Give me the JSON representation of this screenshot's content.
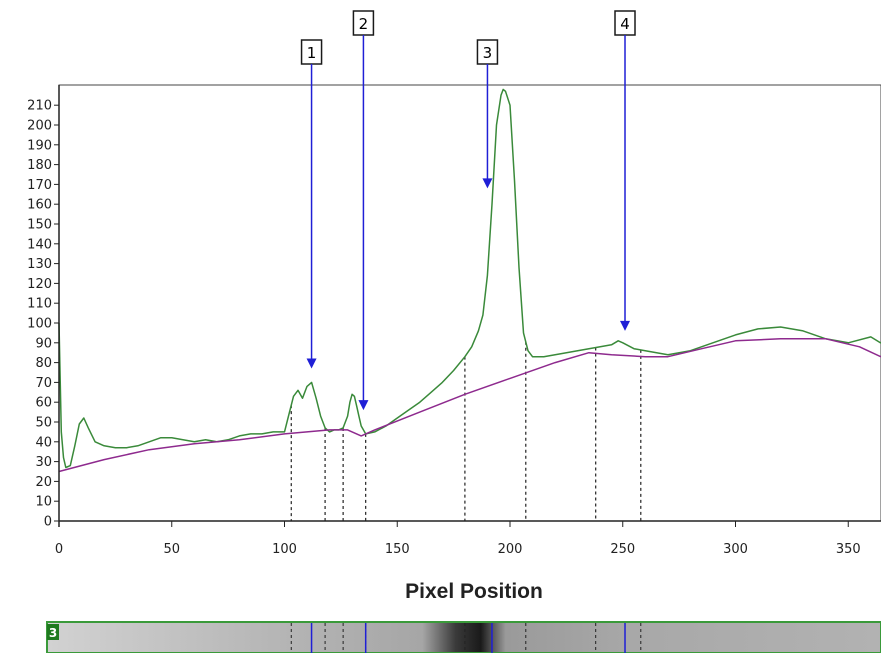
{
  "chart_data": {
    "type": "line",
    "xlabel": "Pixel Position",
    "ylabel": "",
    "xlim": [
      0,
      370
    ],
    "ylim": [
      0,
      220
    ],
    "x_ticks": [
      0,
      50,
      100,
      150,
      200,
      250,
      300,
      350
    ],
    "y_ticks": [
      0,
      10,
      20,
      30,
      40,
      50,
      60,
      70,
      80,
      90,
      100,
      110,
      120,
      130,
      140,
      150,
      160,
      170,
      180,
      190,
      200,
      210
    ],
    "grid": false,
    "colors": {
      "profile": "#3a8a3a",
      "baseline": "#8e2a8e",
      "marker": "#1f1fd6",
      "lane_label_bg": "#1f7a1f",
      "lane_border": "#3a9a3a"
    },
    "series": [
      {
        "role": "profile",
        "x": [
          0,
          1,
          2,
          3,
          5,
          7,
          9,
          11,
          13,
          16,
          20,
          25,
          30,
          35,
          40,
          45,
          50,
          55,
          60,
          65,
          70,
          75,
          80,
          85,
          90,
          95,
          100,
          102,
          104,
          106,
          108,
          110,
          112,
          114,
          116,
          118,
          120,
          122,
          124,
          126,
          128,
          129,
          130,
          131,
          132,
          133,
          134,
          136,
          140,
          145,
          150,
          155,
          160,
          165,
          170,
          175,
          180,
          183,
          186,
          188,
          190,
          192,
          194,
          196,
          197,
          198,
          200,
          202,
          204,
          206,
          208,
          210,
          215,
          220,
          225,
          230,
          235,
          240,
          245,
          248,
          250,
          255,
          260,
          265,
          270,
          280,
          290,
          300,
          310,
          320,
          330,
          340,
          350,
          360,
          370
        ],
        "y": [
          100,
          45,
          32,
          27,
          28,
          38,
          49,
          52,
          47,
          40,
          38,
          37,
          37,
          38,
          40,
          42,
          42,
          41,
          40,
          41,
          40,
          41,
          43,
          44,
          44,
          45,
          45,
          54,
          63,
          66,
          62,
          68,
          70,
          62,
          53,
          47,
          45,
          46,
          46,
          47,
          53,
          60,
          64,
          63,
          58,
          53,
          48,
          44,
          45,
          48,
          52,
          56,
          60,
          65,
          70,
          76,
          83,
          88,
          96,
          104,
          124,
          160,
          200,
          215,
          218,
          217,
          210,
          172,
          128,
          95,
          86,
          83,
          83,
          84,
          85,
          86,
          87,
          88,
          89,
          91,
          90,
          87,
          86,
          85,
          84,
          86,
          90,
          94,
          97,
          98,
          96,
          92,
          90,
          93,
          86
        ]
      },
      {
        "role": "baseline",
        "x": [
          0,
          20,
          40,
          60,
          80,
          100,
          110,
          120,
          128,
          134,
          140,
          160,
          180,
          200,
          220,
          235,
          245,
          260,
          270,
          285,
          300,
          320,
          340,
          355,
          370
        ],
        "y": [
          25,
          31,
          36,
          39,
          41,
          44,
          45,
          46,
          46,
          43,
          46,
          55,
          64,
          72,
          80,
          85,
          84,
          83,
          83,
          87,
          91,
          92,
          92,
          88,
          80
        ]
      }
    ],
    "markers": [
      {
        "label": "1",
        "x": 112,
        "y": 77
      },
      {
        "label": "2",
        "x": 135,
        "y": 56
      },
      {
        "label": "3",
        "x": 190,
        "y": 168
      },
      {
        "label": "4",
        "x": 251,
        "y": 96
      }
    ],
    "band_boundaries": [
      103,
      118,
      126,
      136,
      180,
      207,
      238,
      258
    ],
    "lane_label": "3",
    "lane_markers": [
      112,
      136,
      192,
      251
    ]
  }
}
